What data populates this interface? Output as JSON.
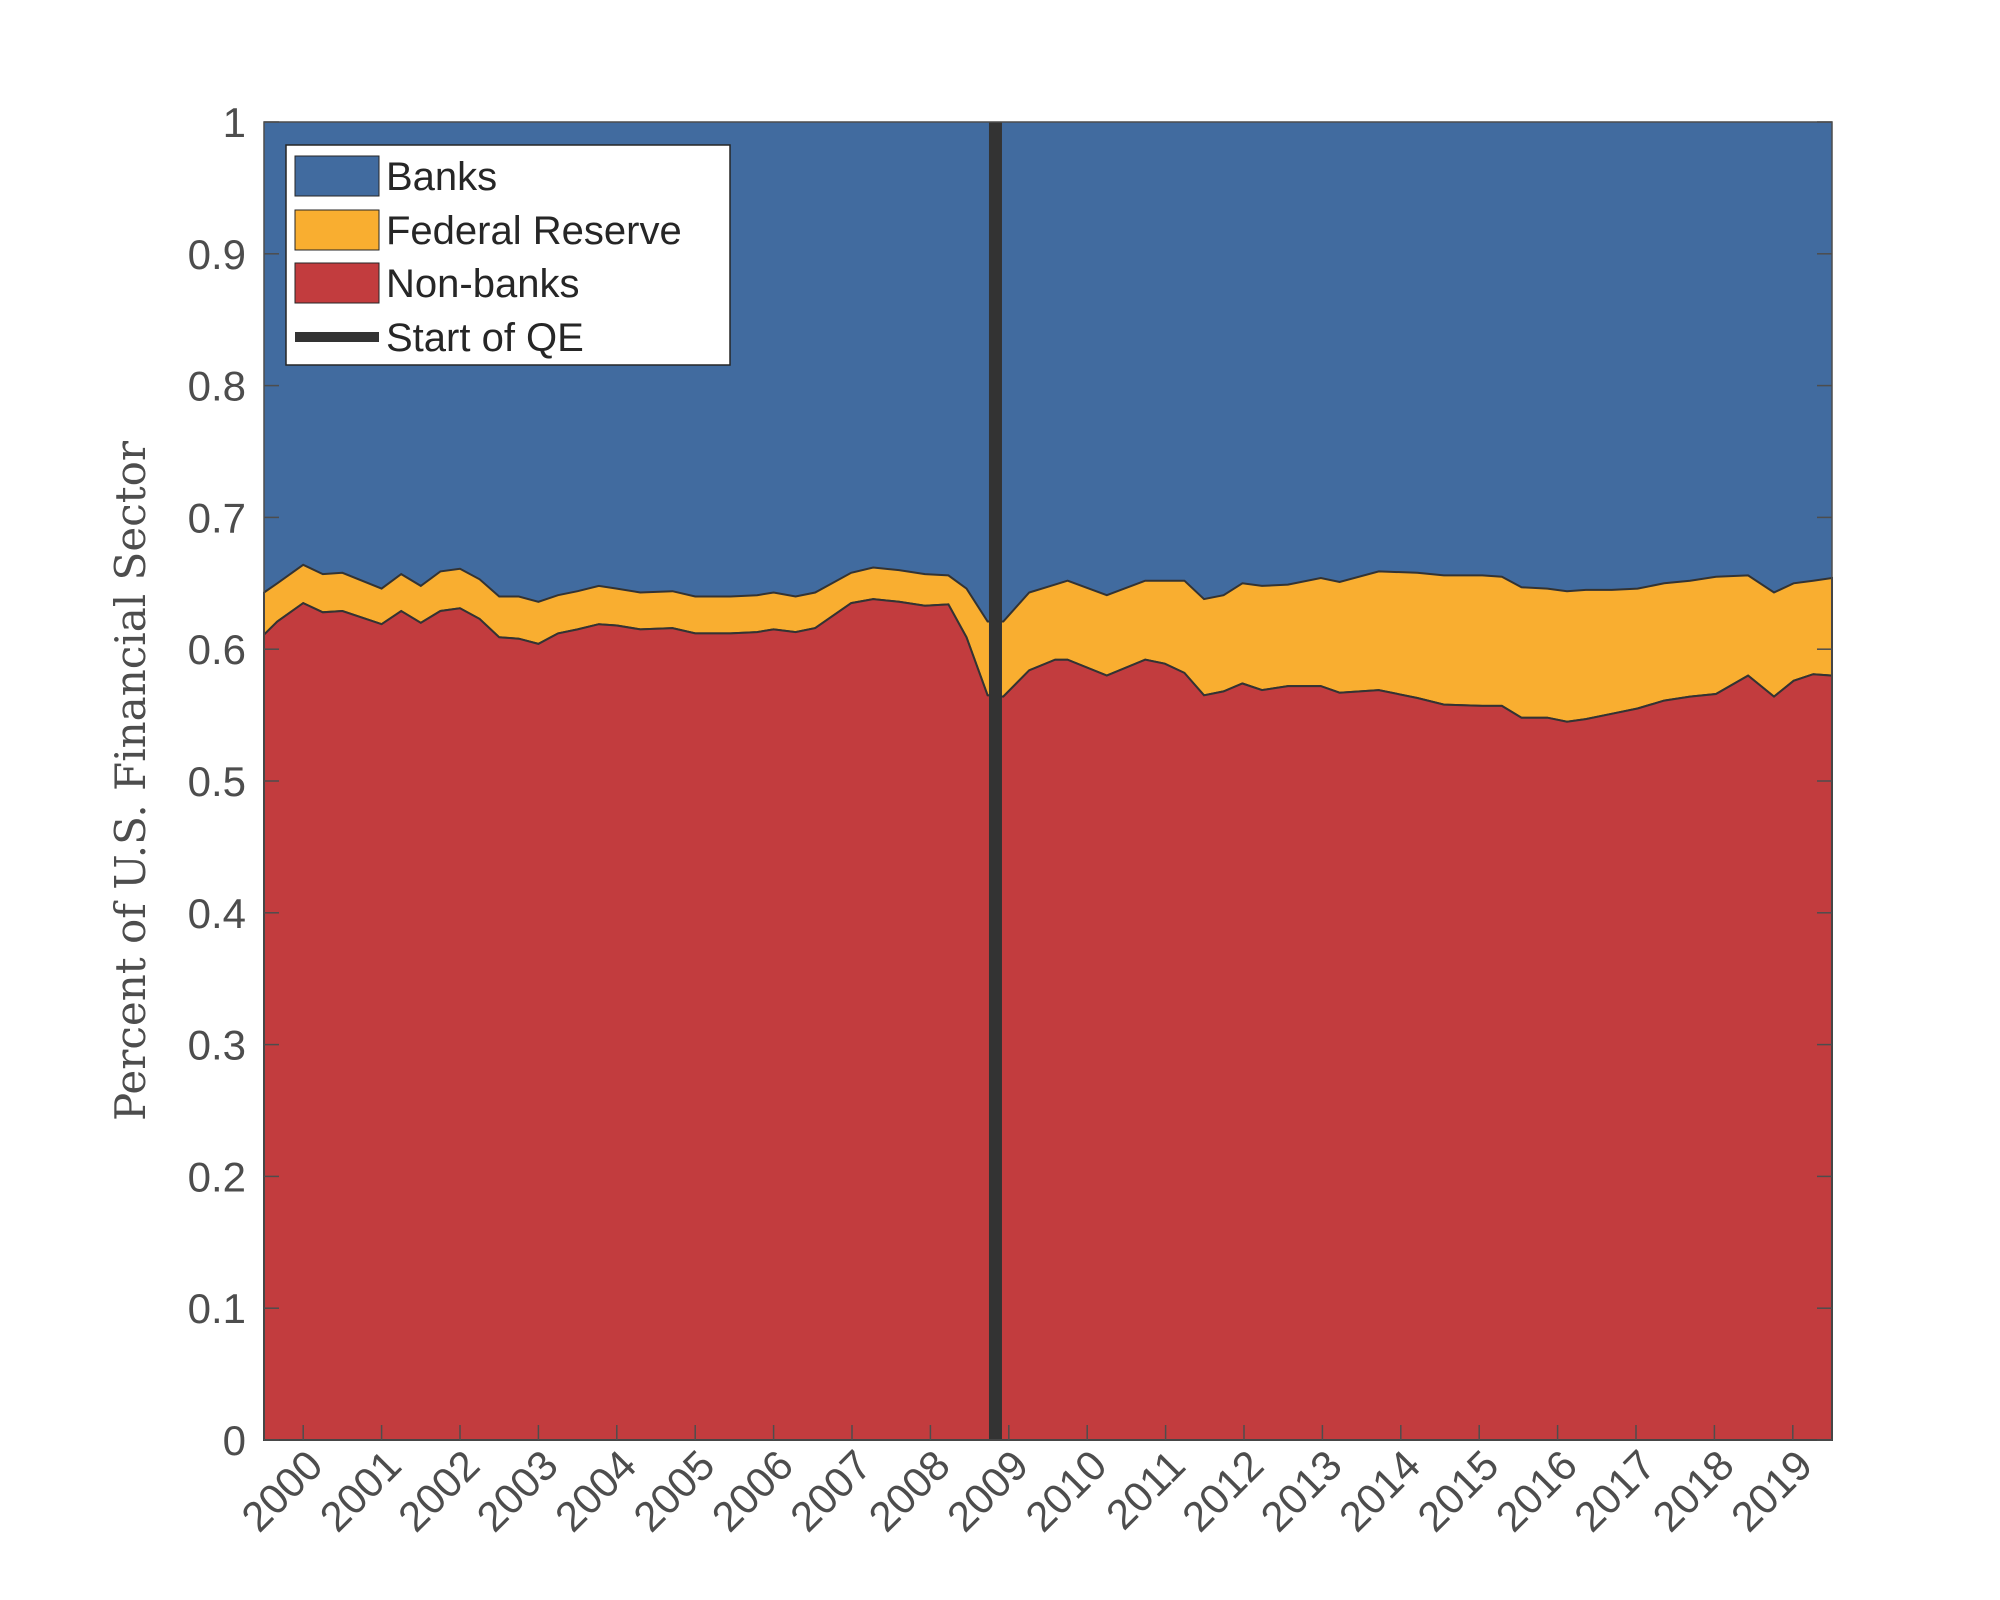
{
  "chart_data": {
    "type": "area",
    "stacked": true,
    "title": "",
    "xlabel": "",
    "ylabel": "Percent of U.S. Financial Sector",
    "xlim": [
      1999.5,
      2019.5
    ],
    "ylim": [
      0,
      1
    ],
    "yticks": [
      "0",
      "0.1",
      "0.2",
      "0.3",
      "0.4",
      "0.5",
      "0.6",
      "0.7",
      "0.8",
      "0.9",
      "1"
    ],
    "xticks": [
      "2000",
      "2001",
      "2002",
      "2003",
      "2004",
      "2005",
      "2006",
      "2007",
      "2008",
      "2009",
      "2010",
      "2011",
      "2012",
      "2013",
      "2014",
      "2015",
      "2016",
      "2017",
      "2018",
      "2019"
    ],
    "legend_position": "top-left",
    "legend": [
      "Banks",
      "Federal Reserve",
      "Non-banks",
      "Start of QE"
    ],
    "colors": {
      "banks": "#416b9f",
      "federal_reserve": "#f9ae30",
      "nonbanks": "#c23c3e",
      "qe_line": "#333333"
    },
    "qe_start": 2008.83,
    "x": [
      1999.5,
      1999.67,
      2000.0,
      2000.25,
      2000.5,
      2001.0,
      2001.25,
      2001.5,
      2001.75,
      2002.0,
      2002.25,
      2002.5,
      2002.75,
      2003.0,
      2003.25,
      2003.5,
      2003.77,
      2004.0,
      2004.3,
      2004.71,
      2005.0,
      2005.45,
      2005.79,
      2006.0,
      2006.28,
      2006.53,
      2006.99,
      2007.27,
      2007.6,
      2007.93,
      2008.23,
      2008.46,
      2008.73,
      2008.93,
      2009.26,
      2009.59,
      2009.75,
      2010.25,
      2010.74,
      2010.99,
      2011.24,
      2011.49,
      2011.74,
      2011.98,
      2012.23,
      2012.56,
      2012.98,
      2013.22,
      2013.72,
      2014.21,
      2014.55,
      2015.04,
      2015.29,
      2015.54,
      2015.87,
      2016.12,
      2016.36,
      2016.69,
      2017.02,
      2017.36,
      2017.69,
      2018.02,
      2018.43,
      2018.76,
      2019.01,
      2019.26,
      2019.5
    ],
    "series": [
      {
        "name": "Non-banks",
        "values": [
          0.611,
          0.621,
          0.635,
          0.628,
          0.629,
          0.619,
          0.629,
          0.62,
          0.629,
          0.631,
          0.623,
          0.609,
          0.608,
          0.604,
          0.612,
          0.615,
          0.619,
          0.618,
          0.615,
          0.616,
          0.612,
          0.612,
          0.613,
          0.615,
          0.613,
          0.616,
          0.635,
          0.638,
          0.636,
          0.633,
          0.634,
          0.609,
          0.565,
          0.564,
          0.584,
          0.592,
          0.592,
          0.58,
          0.592,
          0.589,
          0.582,
          0.565,
          0.568,
          0.574,
          0.569,
          0.572,
          0.572,
          0.567,
          0.569,
          0.563,
          0.558,
          0.557,
          0.557,
          0.548,
          0.548,
          0.545,
          0.547,
          0.551,
          0.555,
          0.561,
          0.564,
          0.566,
          0.58,
          0.564,
          0.576,
          0.581,
          0.58
        ]
      },
      {
        "name": "Federal Reserve",
        "values": [
          0.032,
          0.029,
          0.029,
          0.029,
          0.029,
          0.027,
          0.028,
          0.028,
          0.03,
          0.03,
          0.03,
          0.031,
          0.032,
          0.032,
          0.029,
          0.029,
          0.029,
          0.028,
          0.028,
          0.028,
          0.028,
          0.028,
          0.028,
          0.028,
          0.027,
          0.027,
          0.023,
          0.024,
          0.024,
          0.024,
          0.022,
          0.037,
          0.056,
          0.057,
          0.059,
          0.057,
          0.06,
          0.061,
          0.06,
          0.063,
          0.07,
          0.073,
          0.073,
          0.076,
          0.079,
          0.077,
          0.082,
          0.084,
          0.09,
          0.095,
          0.098,
          0.099,
          0.098,
          0.099,
          0.098,
          0.099,
          0.098,
          0.094,
          0.091,
          0.089,
          0.088,
          0.089,
          0.076,
          0.079,
          0.074,
          0.071,
          0.074
        ]
      },
      {
        "name": "Banks",
        "values": "remainder to 1"
      }
    ]
  }
}
